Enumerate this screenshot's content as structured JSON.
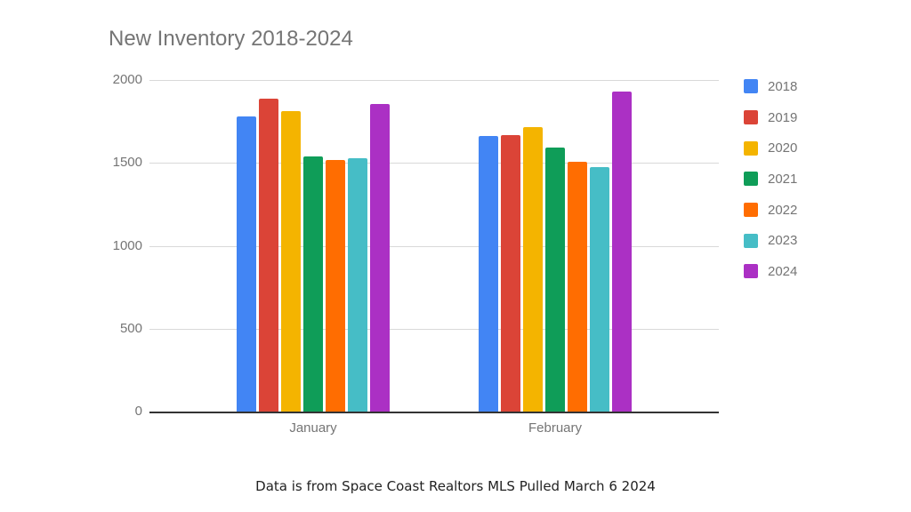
{
  "chart_data": {
    "type": "bar",
    "title": "New Inventory 2018-2024",
    "categories": [
      "January",
      "February"
    ],
    "series": [
      {
        "name": "2018",
        "color": "#4285f4",
        "values": [
          1780,
          1660
        ]
      },
      {
        "name": "2019",
        "color": "#db4437",
        "values": [
          1890,
          1670
        ]
      },
      {
        "name": "2020",
        "color": "#f4b400",
        "values": [
          1815,
          1715
        ]
      },
      {
        "name": "2021",
        "color": "#0f9d58",
        "values": [
          1540,
          1590
        ]
      },
      {
        "name": "2022",
        "color": "#ff6d01",
        "values": [
          1520,
          1505
        ]
      },
      {
        "name": "2023",
        "color": "#46bdc6",
        "values": [
          1530,
          1475
        ]
      },
      {
        "name": "2024",
        "color": "#ab30c4",
        "values": [
          1855,
          1930
        ]
      }
    ],
    "xlabel": "",
    "ylabel": "",
    "ylim": [
      0,
      2000
    ],
    "yticks": [
      "0",
      "500",
      "1000",
      "1500",
      "2000"
    ],
    "grid": true,
    "legend_position": "right"
  },
  "footnote": "Data is from Space Coast Realtors MLS Pulled March 6 2024"
}
